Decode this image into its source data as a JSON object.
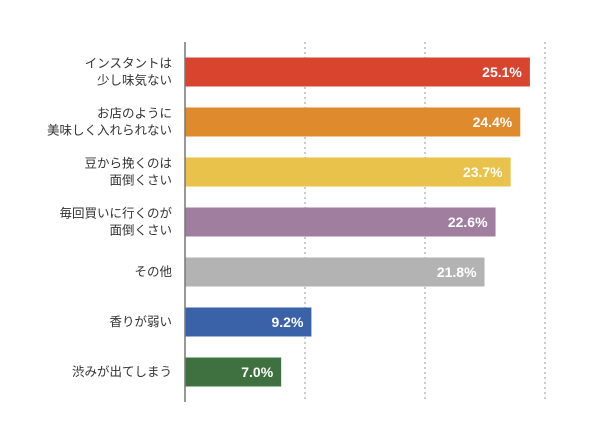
{
  "chart_data": {
    "type": "bar",
    "orientation": "horizontal",
    "title": "",
    "xlabel": "",
    "ylabel": "",
    "categories": [
      [
        "インスタントは",
        "少し味気ない"
      ],
      [
        "お店のように",
        "美味しく入れられない"
      ],
      [
        "豆から挽くのは",
        "面倒くさい"
      ],
      [
        "毎回買いに行くのが",
        "面倒くさい"
      ],
      [
        "その他"
      ],
      [
        "香りが弱い"
      ],
      [
        "渋みが出てしまう"
      ]
    ],
    "values": [
      25.1,
      24.4,
      23.7,
      22.6,
      21.8,
      9.2,
      7.0
    ],
    "value_labels": [
      "25.1%",
      "24.4%",
      "23.7%",
      "22.6%",
      "21.8%",
      "9.2%",
      "7.0%"
    ],
    "colors": [
      "#d9442f",
      "#e08a2e",
      "#e8c24a",
      "#a07ea0",
      "#b3b3b3",
      "#3a62a8",
      "#3f7040"
    ],
    "xlim": [
      0,
      26.2
    ],
    "grid": "vertical dotted",
    "legend": "none"
  }
}
